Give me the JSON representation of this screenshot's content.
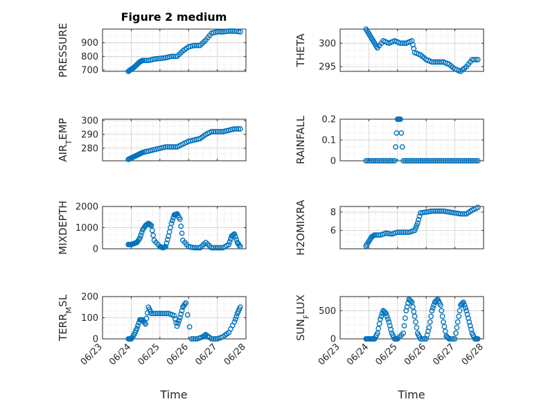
{
  "figure": {
    "title": "Figure 2 medium",
    "xlabel": "Time",
    "marker_color": "#0072BD",
    "x_ticks": [
      "06/23",
      "06/24",
      "06/25",
      "06/26",
      "06/27",
      "06/28"
    ],
    "x_range": [
      "06/23",
      "06/28"
    ]
  },
  "chart_data": [
    {
      "type": "scatter",
      "ylabel": "PRESSURE",
      "ylim": [
        690,
        1000
      ],
      "yticks": [
        700,
        800,
        900
      ],
      "grid": true,
      "x": [
        23.9,
        24.0,
        24.1,
        24.2,
        24.3,
        24.4,
        24.6,
        24.8,
        25.0,
        25.2,
        25.4,
        25.6,
        25.8,
        26.0,
        26.2,
        26.4,
        26.6,
        26.8,
        27.0,
        27.2,
        27.4,
        27.6,
        27.8
      ],
      "y": [
        690,
        705,
        720,
        740,
        760,
        770,
        770,
        780,
        785,
        790,
        800,
        800,
        840,
        870,
        880,
        880,
        920,
        970,
        980,
        980,
        985,
        985,
        980
      ]
    },
    {
      "type": "scatter",
      "ylabel": "THETA",
      "ylim": [
        294,
        303
      ],
      "yticks": [
        295,
        300
      ],
      "grid": true,
      "x": [
        23.9,
        24.0,
        24.1,
        24.2,
        24.3,
        24.5,
        24.7,
        24.9,
        25.1,
        25.3,
        25.5,
        25.6,
        25.8,
        26.0,
        26.2,
        26.4,
        26.6,
        26.8,
        27.0,
        27.2,
        27.4,
        27.6,
        27.8
      ],
      "y": [
        303,
        302,
        301,
        300,
        299,
        300.5,
        300,
        300.5,
        300,
        300,
        300.5,
        298,
        297.5,
        296.5,
        296,
        296,
        296,
        295.5,
        294.5,
        294,
        295,
        296.5,
        296.5
      ]
    },
    {
      "type": "scatter",
      "ylabel": "AIR_TEMP",
      "ylim": [
        271,
        301
      ],
      "yticks": [
        280,
        290,
        300
      ],
      "grid": true,
      "x": [
        23.9,
        24.0,
        24.1,
        24.2,
        24.3,
        24.4,
        24.6,
        24.8,
        25.0,
        25.2,
        25.4,
        25.6,
        25.8,
        26.0,
        26.2,
        26.4,
        26.6,
        26.8,
        27.0,
        27.2,
        27.4,
        27.6,
        27.8
      ],
      "y": [
        272,
        273,
        274,
        275,
        276,
        277,
        278,
        279,
        280,
        281,
        281,
        281,
        283,
        285,
        286,
        287,
        290,
        292,
        292,
        292,
        293,
        294,
        294
      ]
    },
    {
      "type": "scatter",
      "ylabel": "RAINFALL",
      "ylim": [
        0,
        0.2
      ],
      "yticks": [
        0,
        0.1,
        0.2
      ],
      "grid": true,
      "x": [
        23.9,
        24.1,
        24.3,
        24.5,
        24.7,
        24.9,
        25.0,
        25.1,
        25.2,
        25.4,
        25.6,
        25.8,
        26.0,
        26.2,
        26.4,
        26.6,
        26.8,
        27.0,
        27.2,
        27.4,
        27.6,
        27.8
      ],
      "y": [
        0,
        0,
        0,
        0,
        0,
        0,
        0.2,
        0.2,
        0,
        0,
        0,
        0,
        0,
        0,
        0,
        0,
        0,
        0,
        0,
        0,
        0,
        0
      ]
    },
    {
      "type": "scatter",
      "ylabel": "MIXDEPTH",
      "ylim": [
        0,
        2000
      ],
      "yticks": [
        0,
        1000,
        2000
      ],
      "grid": true,
      "x": [
        23.9,
        24.0,
        24.1,
        24.2,
        24.3,
        24.4,
        24.5,
        24.6,
        24.7,
        24.8,
        25.0,
        25.1,
        25.2,
        25.3,
        25.4,
        25.5,
        25.6,
        25.7,
        25.8,
        26.0,
        26.2,
        26.4,
        26.6,
        26.8,
        27.0,
        27.2,
        27.4,
        27.5,
        27.6,
        27.7,
        27.8
      ],
      "y": [
        200,
        200,
        250,
        300,
        500,
        900,
        1100,
        1200,
        1100,
        400,
        100,
        50,
        100,
        600,
        1200,
        1600,
        1650,
        1400,
        400,
        100,
        50,
        50,
        300,
        50,
        50,
        50,
        200,
        600,
        700,
        300,
        100
      ]
    },
    {
      "type": "scatter",
      "ylabel": "H2OMIXRA",
      "ylim": [
        4,
        8.6
      ],
      "yticks": [
        6,
        8
      ],
      "grid": true,
      "x": [
        23.9,
        24.0,
        24.1,
        24.2,
        24.4,
        24.6,
        24.8,
        25.0,
        25.2,
        25.4,
        25.6,
        25.7,
        25.8,
        26.0,
        26.2,
        26.4,
        26.6,
        26.8,
        27.0,
        27.2,
        27.4,
        27.6,
        27.8
      ],
      "y": [
        4.3,
        4.8,
        5.3,
        5.5,
        5.5,
        5.7,
        5.6,
        5.8,
        5.8,
        5.8,
        6.0,
        6.8,
        7.9,
        8.0,
        8.1,
        8.1,
        8.1,
        8.0,
        7.9,
        7.8,
        7.8,
        8.2,
        8.5
      ]
    },
    {
      "type": "scatter",
      "ylabel": "TERR_MSL",
      "ylim": [
        0,
        200
      ],
      "yticks": [
        0,
        100,
        200
      ],
      "grid": true,
      "x": [
        23.9,
        24.0,
        24.1,
        24.2,
        24.3,
        24.4,
        24.5,
        24.6,
        24.7,
        24.9,
        25.1,
        25.3,
        25.5,
        25.6,
        25.7,
        25.8,
        25.9,
        26.1,
        26.3,
        26.5,
        26.6,
        26.8,
        27.0,
        27.2,
        27.4,
        27.6,
        27.7,
        27.8
      ],
      "y": [
        0,
        0,
        20,
        50,
        90,
        90,
        70,
        150,
        120,
        120,
        120,
        120,
        110,
        60,
        100,
        150,
        170,
        0,
        0,
        10,
        20,
        0,
        0,
        10,
        30,
        80,
        120,
        150
      ]
    },
    {
      "type": "scatter",
      "ylabel": "SUN_FLUX",
      "ylim": [
        0,
        750
      ],
      "yticks": [
        0,
        500
      ],
      "grid": true,
      "x": [
        23.9,
        24.0,
        24.1,
        24.2,
        24.3,
        24.4,
        24.5,
        24.6,
        24.7,
        24.8,
        24.9,
        25.0,
        25.2,
        25.3,
        25.4,
        25.5,
        25.6,
        25.7,
        25.8,
        26.0,
        26.1,
        26.2,
        26.3,
        26.4,
        26.5,
        26.6,
        26.7,
        26.8,
        27.0,
        27.1,
        27.2,
        27.3,
        27.4,
        27.5,
        27.6,
        27.7,
        27.8
      ],
      "y": [
        0,
        0,
        0,
        0,
        100,
        350,
        500,
        450,
        300,
        100,
        0,
        0,
        100,
        500,
        700,
        650,
        400,
        100,
        0,
        0,
        200,
        500,
        650,
        700,
        600,
        300,
        50,
        0,
        0,
        300,
        600,
        650,
        500,
        300,
        100,
        0,
        0
      ]
    }
  ]
}
